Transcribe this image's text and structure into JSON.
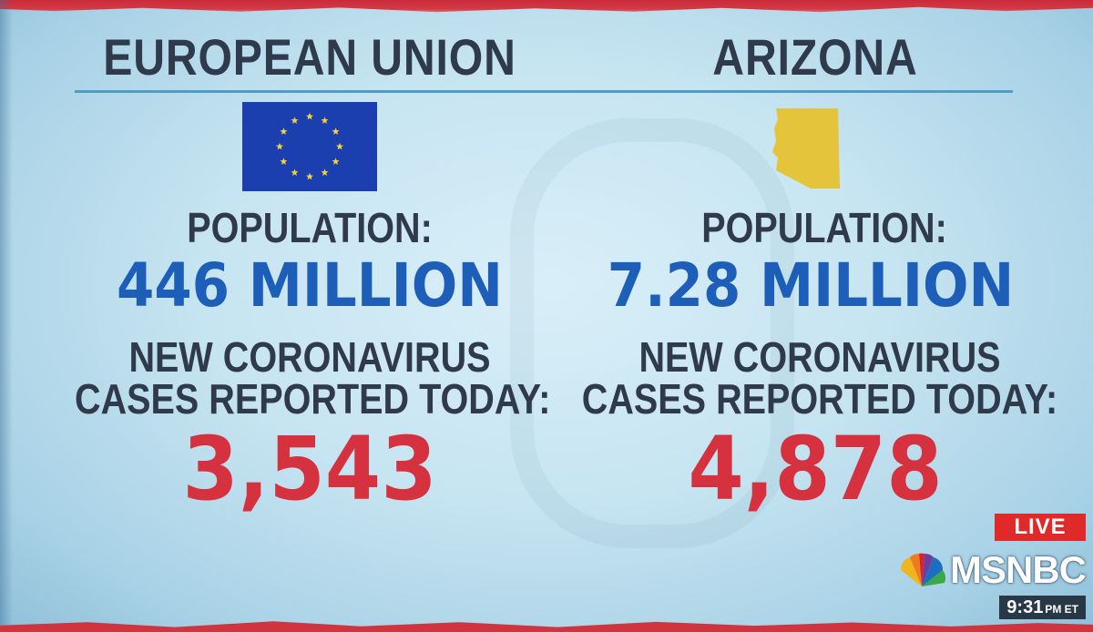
{
  "left": {
    "title": "EUROPEAN UNION",
    "population_label": "POPULATION:",
    "population_value": "446 MILLION",
    "cases_label_line1": "NEW CORONAVIRUS",
    "cases_label_line2": "CASES REPORTED TODAY:",
    "cases_value": "3,543",
    "emblem": "eu-flag-icon"
  },
  "right": {
    "title": "ARIZONA",
    "population_label": "POPULATION:",
    "population_value": "7.28 MILLION",
    "cases_label_line1": "NEW CORONAVIRUS",
    "cases_label_line2": "CASES REPORTED TODAY:",
    "cases_value": "4,878",
    "emblem": "arizona-map-icon"
  },
  "broadcast": {
    "live_label": "LIVE",
    "network": "MSNBC",
    "logo_icon": "peacock-icon",
    "time": "9:31",
    "time_suffix": "PM ET"
  },
  "colors": {
    "title_text": "#2f3a4c",
    "population_value": "#1d5fb8",
    "cases_value": "#d5313f",
    "eu_flag_blue": "#1c3fb0",
    "eu_flag_stars": "#f3d23a",
    "arizona_fill": "#e3c43a",
    "live_badge": "#e02a2a"
  }
}
